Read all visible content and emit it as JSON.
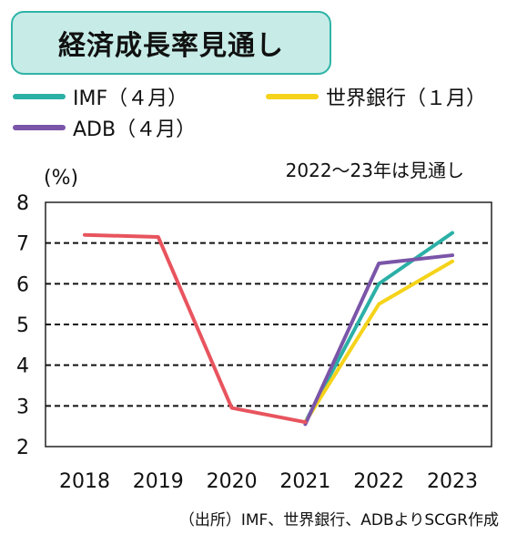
{
  "header": {
    "title": "経済成長率見通し"
  },
  "legend": [
    {
      "label": "IMF（４月）",
      "color": "#2bb0a6"
    },
    {
      "label": "世界銀行（１月）",
      "color": "#f5d31a"
    },
    {
      "label": "ADB（４月）",
      "color": "#7a55a8"
    }
  ],
  "notes": {
    "unit": "(%)",
    "forecast": "2022～23年は見通し",
    "source": "（出所）IMF、世界銀行、ADBよりSCGR作成"
  },
  "chart_data": {
    "type": "line",
    "title": "経済成長率見通し",
    "xlabel": "",
    "ylabel": "(%)",
    "categories": [
      "2018",
      "2019",
      "2020",
      "2021",
      "2022",
      "2023"
    ],
    "ylim": [
      2,
      8
    ],
    "yticks": [
      2,
      3,
      4,
      5,
      6,
      7,
      8
    ],
    "grid": "horizontal dashed",
    "legend_position": "top",
    "history_color": "#e8545e",
    "series": [
      {
        "name": "IMF（４月）",
        "color": "#2bb0a6",
        "values": [
          7.2,
          7.15,
          2.95,
          2.6,
          6.0,
          7.25
        ]
      },
      {
        "name": "世界銀行（１月）",
        "color": "#f5d31a",
        "values": [
          7.2,
          7.15,
          2.95,
          2.6,
          5.5,
          6.55
        ]
      },
      {
        "name": "ADB（４月）",
        "color": "#7a55a8",
        "values": [
          7.2,
          7.15,
          2.95,
          2.55,
          6.5,
          6.7
        ]
      }
    ]
  }
}
